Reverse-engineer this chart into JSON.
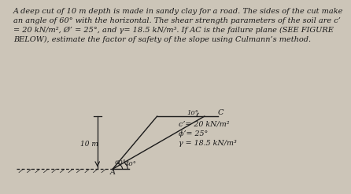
{
  "title_text": "A deep cut of 10 m depth is made in sandy clay for a road. The sides of the cut make\nan angle of 60° with the horizontal. The shear strength parameters of the soil are c’\n= 20 kN/m², Ø’ = 25°, and γ= 18.5 kN/m³. If AC is the failure plane (SEE FIGURE\nBELOW), estimate the factor of safety of the slope using Culmann’s method.",
  "param_line1": "c’= 20 kN/m²",
  "param_line2": "ϕ’= 25°",
  "param_line3": "γ = 18.5 kN/m³",
  "depth_label": "10 m",
  "angle1_label": "60°",
  "angle2_label": "40°",
  "angle3_label": "10°",
  "point_A": "A",
  "point_C": "C",
  "bg_color": "#ccc5b8",
  "line_color": "#1a1a1a",
  "text_color": "#1a1a1a",
  "font_size_title": 7.0,
  "font_size_labels": 6.5,
  "font_size_params": 6.8
}
